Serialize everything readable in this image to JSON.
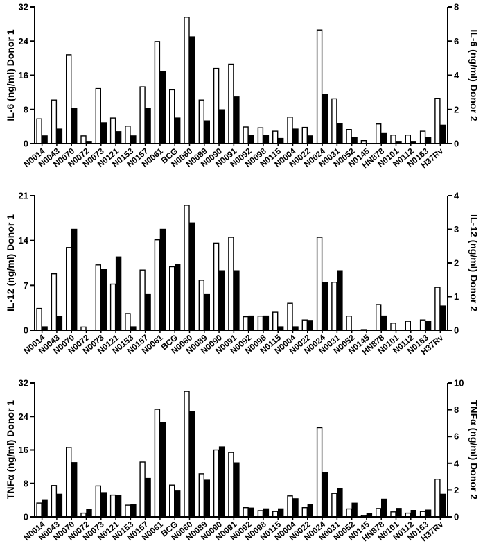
{
  "chart_data": [
    {
      "type": "bar",
      "categories": [
        "N0014",
        "N0043",
        "N0070",
        "N0072",
        "N0073",
        "N0121",
        "N0153",
        "N0157",
        "N0061",
        "BCG",
        "N0060",
        "N0089",
        "N0090",
        "N0091",
        "N0092",
        "N0098",
        "N0115",
        "N0004",
        "N0022",
        "N0024",
        "N0031",
        "N0052",
        "N0145",
        "HN878",
        "N0101",
        "N0112",
        "N0163",
        "H37Rv"
      ],
      "ylabel": "IL-6 (ng/ml) Donor 1",
      "y2label": "IL-6 (ng/ml) Donor 2",
      "ylim": [
        0,
        32
      ],
      "y2lim": [
        0,
        8
      ],
      "yticks": [
        "0",
        "8",
        "16",
        "24",
        "32"
      ],
      "y2ticks": [
        "0",
        "2",
        "4",
        "6",
        "8"
      ],
      "series": [
        {
          "axis": "left",
          "fill": "#ffffff",
          "values": [
            5.8,
            10.2,
            20.8,
            1.8,
            12.9,
            6.0,
            4.1,
            13.3,
            23.9,
            12.6,
            29.6,
            10.2,
            17.6,
            18.6,
            3.9,
            3.7,
            2.9,
            6.2,
            3.8,
            26.6,
            10.5,
            3.3,
            0.7,
            4.6,
            2.0,
            2.0,
            2.9,
            10.6
          ]
        },
        {
          "axis": "right",
          "fill": "#000000",
          "values": [
            0.45,
            0.85,
            2.05,
            0.13,
            1.22,
            0.7,
            0.45,
            2.05,
            4.2,
            1.5,
            6.25,
            1.33,
            1.98,
            2.73,
            0.5,
            0.48,
            0.3,
            0.85,
            0.45,
            2.88,
            1.18,
            0.35,
            0.0,
            0.63,
            0.13,
            0.13,
            0.35,
            1.08
          ]
        }
      ]
    },
    {
      "type": "bar",
      "categories": [
        "N0014",
        "N0043",
        "N0070",
        "N0072",
        "N0073",
        "N0121",
        "N0153",
        "N0157",
        "N0061",
        "BCG",
        "N0060",
        "N0089",
        "N0090",
        "N0091",
        "N0092",
        "N0098",
        "N0115",
        "N0004",
        "N0022",
        "N0024",
        "N0031",
        "N0052",
        "N0145",
        "HN878",
        "N0101",
        "N0112",
        "N0163",
        "H37Rv"
      ],
      "ylabel": "IL-12 (ng/ml) Donor 1",
      "y2label": "IL-12 (ng/ml) Donor 2",
      "ylim": [
        0,
        21
      ],
      "y2lim": [
        0,
        4
      ],
      "yticks": [
        "0",
        "7",
        "14",
        "21"
      ],
      "y2ticks": [
        "0",
        "1",
        "2",
        "3",
        "4"
      ],
      "series": [
        {
          "axis": "left",
          "fill": "#ffffff",
          "values": [
            3.4,
            8.8,
            12.9,
            0.5,
            10.2,
            7.2,
            2.6,
            9.4,
            14.1,
            9.9,
            19.5,
            7.8,
            13.6,
            14.5,
            2.1,
            2.2,
            2.8,
            4.2,
            1.6,
            14.5,
            7.5,
            2.2,
            0.1,
            4.0,
            1.1,
            1.4,
            1.6,
            6.7
          ]
        },
        {
          "axis": "right",
          "fill": "#000000",
          "values": [
            0.1,
            0.41,
            3.0,
            0.0,
            1.8,
            2.18,
            0.1,
            1.06,
            3.0,
            1.96,
            3.19,
            1.06,
            1.77,
            1.77,
            0.42,
            0.42,
            0.1,
            0.1,
            0.29,
            1.41,
            1.77,
            0.0,
            0.0,
            0.42,
            0.0,
            0.0,
            0.26,
            0.72
          ]
        }
      ]
    },
    {
      "type": "bar",
      "categories": [
        "N0014",
        "N0043",
        "N0070",
        "N0072",
        "N0073",
        "N0121",
        "N0153",
        "N0157",
        "N0061",
        "BCG",
        "N0060",
        "N0089",
        "N0090",
        "N0091",
        "N0092",
        "N0098",
        "N0115",
        "N0004",
        "N0022",
        "N0024",
        "N0031",
        "N0052",
        "N0145",
        "HN878",
        "N0101",
        "N0112",
        "N0163",
        "H37Rv"
      ],
      "ylabel": "TNFα (ng/ml) Donor 1",
      "y2label": "TNFα (ng/ml) Donor 2",
      "ylim": [
        0,
        32
      ],
      "y2lim": [
        0,
        10
      ],
      "yticks": [
        "0",
        "8",
        "16",
        "24",
        "32"
      ],
      "y2ticks": [
        "0",
        "2",
        "4",
        "6",
        "8",
        "10"
      ],
      "series": [
        {
          "axis": "left",
          "fill": "#ffffff",
          "values": [
            3.3,
            7.5,
            16.6,
            0.9,
            7.4,
            5.2,
            2.8,
            13.1,
            25.7,
            7.6,
            30.0,
            10.3,
            16.0,
            15.4,
            2.2,
            1.5,
            1.3,
            5.0,
            2.2,
            21.3,
            5.6,
            1.9,
            0.3,
            2.0,
            1.2,
            0.9,
            1.3,
            9.0
          ]
        },
        {
          "axis": "right",
          "fill": "#000000",
          "values": [
            1.23,
            1.69,
            4.05,
            0.54,
            1.81,
            1.57,
            0.93,
            2.87,
            7.06,
            1.93,
            7.86,
            2.74,
            5.23,
            4.03,
            0.66,
            0.6,
            0.6,
            1.35,
            0.93,
            3.28,
            2.14,
            1.02,
            0.23,
            1.32,
            0.63,
            0.48,
            0.51,
            1.69
          ]
        }
      ]
    }
  ]
}
